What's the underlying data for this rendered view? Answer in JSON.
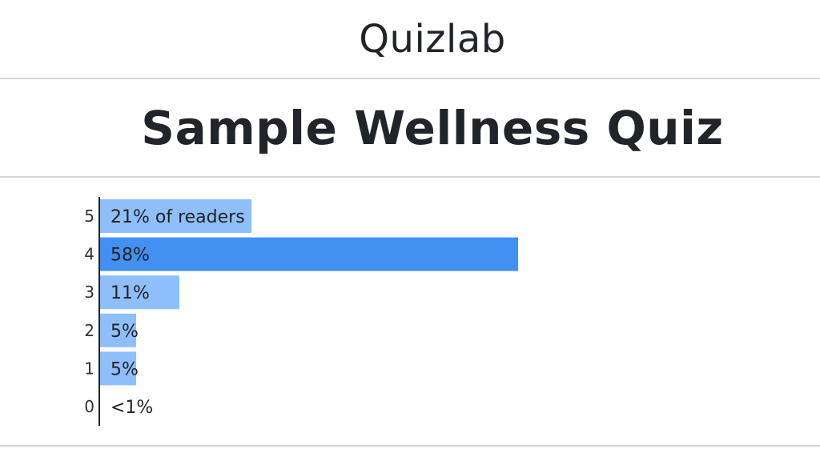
{
  "header": {
    "brand": "Quizlab"
  },
  "quiz": {
    "title": "Sample Wellness Quiz"
  },
  "colors": {
    "bar_default": "#8fbffa",
    "bar_highlight": "#4190f2",
    "axis": "#222222",
    "divider": "#d6d6d6"
  },
  "chart_data": {
    "type": "bar",
    "orientation": "horizontal",
    "title": "",
    "xlabel": "",
    "ylabel": "",
    "categories": [
      "5",
      "4",
      "3",
      "2",
      "1",
      "0"
    ],
    "values": [
      21,
      58,
      11,
      5,
      5,
      0.5
    ],
    "labels": [
      "21% of readers",
      "58%",
      "11%",
      "5%",
      "5%",
      "<1%"
    ],
    "highlight_index": 1,
    "xlim": [
      0,
      100
    ],
    "grid": false,
    "legend": "none"
  }
}
